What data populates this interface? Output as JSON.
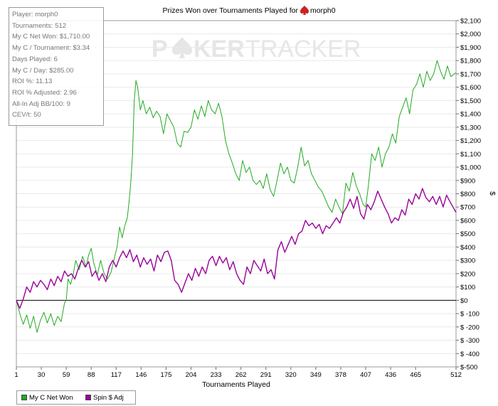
{
  "chart_data": {
    "type": "line",
    "title": "Prizes Won over Tournaments Played for",
    "title_player": "morph0",
    "watermark_left": "P",
    "watermark_right": "KER",
    "watermark_tracker": "TRACKER",
    "xlabel": "Tournaments Played",
    "ylabel": "$",
    "xlim": [
      1,
      512
    ],
    "ylim": [
      -500,
      2100
    ],
    "x_ticks": [
      1,
      30,
      59,
      88,
      117,
      146,
      175,
      204,
      233,
      262,
      291,
      320,
      349,
      378,
      407,
      436,
      465,
      512
    ],
    "y_ticks": [
      {
        "value": 2100,
        "label": "$2,100"
      },
      {
        "value": 2000,
        "label": "$2,000"
      },
      {
        "value": 1900,
        "label": "$1,900"
      },
      {
        "value": 1800,
        "label": "$1,800"
      },
      {
        "value": 1700,
        "label": "$1,700"
      },
      {
        "value": 1600,
        "label": "$1,600"
      },
      {
        "value": 1500,
        "label": "$1,500"
      },
      {
        "value": 1400,
        "label": "$1,400"
      },
      {
        "value": 1300,
        "label": "$1,300"
      },
      {
        "value": 1200,
        "label": "$1,200"
      },
      {
        "value": 1100,
        "label": "$1,100"
      },
      {
        "value": 1000,
        "label": "$1,000"
      },
      {
        "value": 900,
        "label": "$900"
      },
      {
        "value": 800,
        "label": "$800"
      },
      {
        "value": 700,
        "label": "$700"
      },
      {
        "value": 600,
        "label": "$600"
      },
      {
        "value": 500,
        "label": "$500"
      },
      {
        "value": 400,
        "label": "$400"
      },
      {
        "value": 300,
        "label": "$300"
      },
      {
        "value": 200,
        "label": "$200"
      },
      {
        "value": 100,
        "label": "$100"
      },
      {
        "value": 0,
        "label": "$0"
      },
      {
        "value": -100,
        "label": "$ -100"
      },
      {
        "value": -200,
        "label": "$ -200"
      },
      {
        "value": -300,
        "label": "$ -300"
      },
      {
        "value": -400,
        "label": "$ -400"
      },
      {
        "value": -500,
        "label": "$-500"
      }
    ],
    "legend_placement": "bottom-left",
    "series": [
      {
        "name": "My C Net Won",
        "color": "#22aa22",
        "points": [
          [
            1,
            0
          ],
          [
            5,
            -100
          ],
          [
            9,
            -180
          ],
          [
            13,
            -110
          ],
          [
            17,
            -210
          ],
          [
            21,
            -120
          ],
          [
            25,
            -240
          ],
          [
            29,
            -150
          ],
          [
            33,
            -90
          ],
          [
            37,
            -170
          ],
          [
            41,
            -100
          ],
          [
            45,
            -190
          ],
          [
            49,
            -120
          ],
          [
            53,
            -160
          ],
          [
            57,
            -20
          ],
          [
            59,
            0
          ],
          [
            61,
            160
          ],
          [
            64,
            120
          ],
          [
            67,
            190
          ],
          [
            70,
            300
          ],
          [
            74,
            230
          ],
          [
            78,
            330
          ],
          [
            82,
            250
          ],
          [
            85,
            340
          ],
          [
            88,
            390
          ],
          [
            91,
            280
          ],
          [
            95,
            190
          ],
          [
            99,
            300
          ],
          [
            103,
            200
          ],
          [
            107,
            160
          ],
          [
            111,
            210
          ],
          [
            115,
            320
          ],
          [
            118,
            400
          ],
          [
            121,
            550
          ],
          [
            124,
            470
          ],
          [
            127,
            560
          ],
          [
            130,
            620
          ],
          [
            132,
            740
          ],
          [
            134,
            880
          ],
          [
            136,
            1100
          ],
          [
            138,
            1500
          ],
          [
            140,
            1650
          ],
          [
            142,
            1600
          ],
          [
            145,
            1430
          ],
          [
            148,
            1500
          ],
          [
            152,
            1400
          ],
          [
            156,
            1450
          ],
          [
            160,
            1370
          ],
          [
            164,
            1420
          ],
          [
            168,
            1380
          ],
          [
            172,
            1250
          ],
          [
            176,
            1400
          ],
          [
            180,
            1350
          ],
          [
            184,
            1300
          ],
          [
            188,
            1180
          ],
          [
            192,
            1150
          ],
          [
            196,
            1270
          ],
          [
            200,
            1260
          ],
          [
            204,
            1300
          ],
          [
            208,
            1430
          ],
          [
            212,
            1360
          ],
          [
            216,
            1460
          ],
          [
            220,
            1380
          ],
          [
            224,
            1500
          ],
          [
            228,
            1430
          ],
          [
            232,
            1400
          ],
          [
            236,
            1480
          ],
          [
            240,
            1380
          ],
          [
            244,
            1200
          ],
          [
            248,
            1100
          ],
          [
            252,
            1030
          ],
          [
            256,
            950
          ],
          [
            260,
            900
          ],
          [
            264,
            1050
          ],
          [
            268,
            960
          ],
          [
            272,
            1000
          ],
          [
            276,
            900
          ],
          [
            280,
            870
          ],
          [
            284,
            900
          ],
          [
            288,
            840
          ],
          [
            292,
            950
          ],
          [
            296,
            830
          ],
          [
            300,
            780
          ],
          [
            304,
            900
          ],
          [
            308,
            1030
          ],
          [
            312,
            950
          ],
          [
            316,
            1000
          ],
          [
            320,
            900
          ],
          [
            324,
            880
          ],
          [
            328,
            1000
          ],
          [
            332,
            1150
          ],
          [
            336,
            1010
          ],
          [
            340,
            1050
          ],
          [
            344,
            950
          ],
          [
            348,
            900
          ],
          [
            352,
            850
          ],
          [
            356,
            820
          ],
          [
            360,
            760
          ],
          [
            364,
            700
          ],
          [
            368,
            660
          ],
          [
            372,
            760
          ],
          [
            376,
            700
          ],
          [
            380,
            650
          ],
          [
            384,
            880
          ],
          [
            388,
            820
          ],
          [
            392,
            960
          ],
          [
            396,
            860
          ],
          [
            400,
            800
          ],
          [
            404,
            720
          ],
          [
            407,
            700
          ],
          [
            410,
            850
          ],
          [
            414,
            1100
          ],
          [
            418,
            1050
          ],
          [
            422,
            1150
          ],
          [
            426,
            1000
          ],
          [
            430,
            1100
          ],
          [
            434,
            1150
          ],
          [
            438,
            1250
          ],
          [
            442,
            1180
          ],
          [
            446,
            1380
          ],
          [
            450,
            1450
          ],
          [
            454,
            1520
          ],
          [
            458,
            1400
          ],
          [
            462,
            1580
          ],
          [
            466,
            1620
          ],
          [
            470,
            1700
          ],
          [
            474,
            1600
          ],
          [
            478,
            1720
          ],
          [
            482,
            1650
          ],
          [
            486,
            1700
          ],
          [
            490,
            1800
          ],
          [
            494,
            1720
          ],
          [
            498,
            1660
          ],
          [
            502,
            1760
          ],
          [
            506,
            1680
          ],
          [
            512,
            1710
          ]
        ]
      },
      {
        "name": "Spin $ Adj",
        "color": "#990099",
        "points": [
          [
            1,
            0
          ],
          [
            5,
            -60
          ],
          [
            9,
            10
          ],
          [
            13,
            100
          ],
          [
            17,
            60
          ],
          [
            21,
            140
          ],
          [
            25,
            100
          ],
          [
            29,
            150
          ],
          [
            33,
            120
          ],
          [
            37,
            80
          ],
          [
            41,
            160
          ],
          [
            45,
            110
          ],
          [
            49,
            180
          ],
          [
            53,
            140
          ],
          [
            57,
            220
          ],
          [
            61,
            180
          ],
          [
            65,
            200
          ],
          [
            69,
            160
          ],
          [
            73,
            240
          ],
          [
            77,
            300
          ],
          [
            81,
            250
          ],
          [
            85,
            290
          ],
          [
            89,
            180
          ],
          [
            93,
            220
          ],
          [
            97,
            150
          ],
          [
            101,
            200
          ],
          [
            105,
            140
          ],
          [
            109,
            250
          ],
          [
            113,
            300
          ],
          [
            117,
            250
          ],
          [
            121,
            320
          ],
          [
            125,
            370
          ],
          [
            129,
            320
          ],
          [
            133,
            380
          ],
          [
            137,
            290
          ],
          [
            141,
            340
          ],
          [
            145,
            250
          ],
          [
            149,
            320
          ],
          [
            153,
            270
          ],
          [
            157,
            310
          ],
          [
            161,
            220
          ],
          [
            165,
            340
          ],
          [
            169,
            290
          ],
          [
            173,
            360
          ],
          [
            177,
            370
          ],
          [
            181,
            300
          ],
          [
            185,
            150
          ],
          [
            189,
            120
          ],
          [
            193,
            60
          ],
          [
            197,
            130
          ],
          [
            201,
            200
          ],
          [
            205,
            150
          ],
          [
            209,
            240
          ],
          [
            213,
            180
          ],
          [
            217,
            250
          ],
          [
            221,
            200
          ],
          [
            225,
            300
          ],
          [
            229,
            330
          ],
          [
            233,
            260
          ],
          [
            237,
            330
          ],
          [
            241,
            280
          ],
          [
            245,
            320
          ],
          [
            249,
            230
          ],
          [
            253,
            290
          ],
          [
            257,
            200
          ],
          [
            261,
            150
          ],
          [
            265,
            120
          ],
          [
            269,
            250
          ],
          [
            273,
            200
          ],
          [
            277,
            300
          ],
          [
            281,
            260
          ],
          [
            285,
            220
          ],
          [
            289,
            310
          ],
          [
            293,
            200
          ],
          [
            297,
            230
          ],
          [
            301,
            160
          ],
          [
            305,
            380
          ],
          [
            309,
            440
          ],
          [
            313,
            360
          ],
          [
            317,
            420
          ],
          [
            321,
            480
          ],
          [
            325,
            420
          ],
          [
            329,
            500
          ],
          [
            333,
            520
          ],
          [
            337,
            600
          ],
          [
            341,
            560
          ],
          [
            345,
            580
          ],
          [
            349,
            540
          ],
          [
            353,
            570
          ],
          [
            357,
            500
          ],
          [
            361,
            560
          ],
          [
            365,
            540
          ],
          [
            369,
            580
          ],
          [
            373,
            620
          ],
          [
            377,
            580
          ],
          [
            381,
            660
          ],
          [
            385,
            700
          ],
          [
            389,
            760
          ],
          [
            393,
            690
          ],
          [
            397,
            780
          ],
          [
            401,
            650
          ],
          [
            405,
            610
          ],
          [
            409,
            720
          ],
          [
            413,
            680
          ],
          [
            417,
            740
          ],
          [
            421,
            820
          ],
          [
            425,
            760
          ],
          [
            429,
            700
          ],
          [
            433,
            650
          ],
          [
            437,
            580
          ],
          [
            441,
            620
          ],
          [
            445,
            600
          ],
          [
            449,
            680
          ],
          [
            453,
            640
          ],
          [
            457,
            760
          ],
          [
            461,
            720
          ],
          [
            465,
            800
          ],
          [
            469,
            760
          ],
          [
            473,
            840
          ],
          [
            477,
            770
          ],
          [
            481,
            740
          ],
          [
            485,
            780
          ],
          [
            489,
            720
          ],
          [
            493,
            780
          ],
          [
            497,
            700
          ],
          [
            501,
            790
          ],
          [
            505,
            740
          ],
          [
            512,
            660
          ]
        ]
      }
    ]
  },
  "stats": {
    "player": "Player: morph0",
    "tournaments": "Tournaments: 512",
    "net_won": "My C Net Won: $1,710.00",
    "per_tournament": "My C / Tournament: $3.34",
    "days_played": "Days Played: 6",
    "per_day": "My C / Day: $285.00",
    "roi": "ROI %: 11.13",
    "roi_adjusted": "ROI % Adjusted: 2.96",
    "allin": "All-In Adj BB/100: 9",
    "cev": "CEV/t: 50"
  },
  "legend": {
    "net_won": "My C Net Won",
    "spin": "Spin $ Adj",
    "net_won_color": "#22aa22",
    "spin_color": "#990099"
  }
}
